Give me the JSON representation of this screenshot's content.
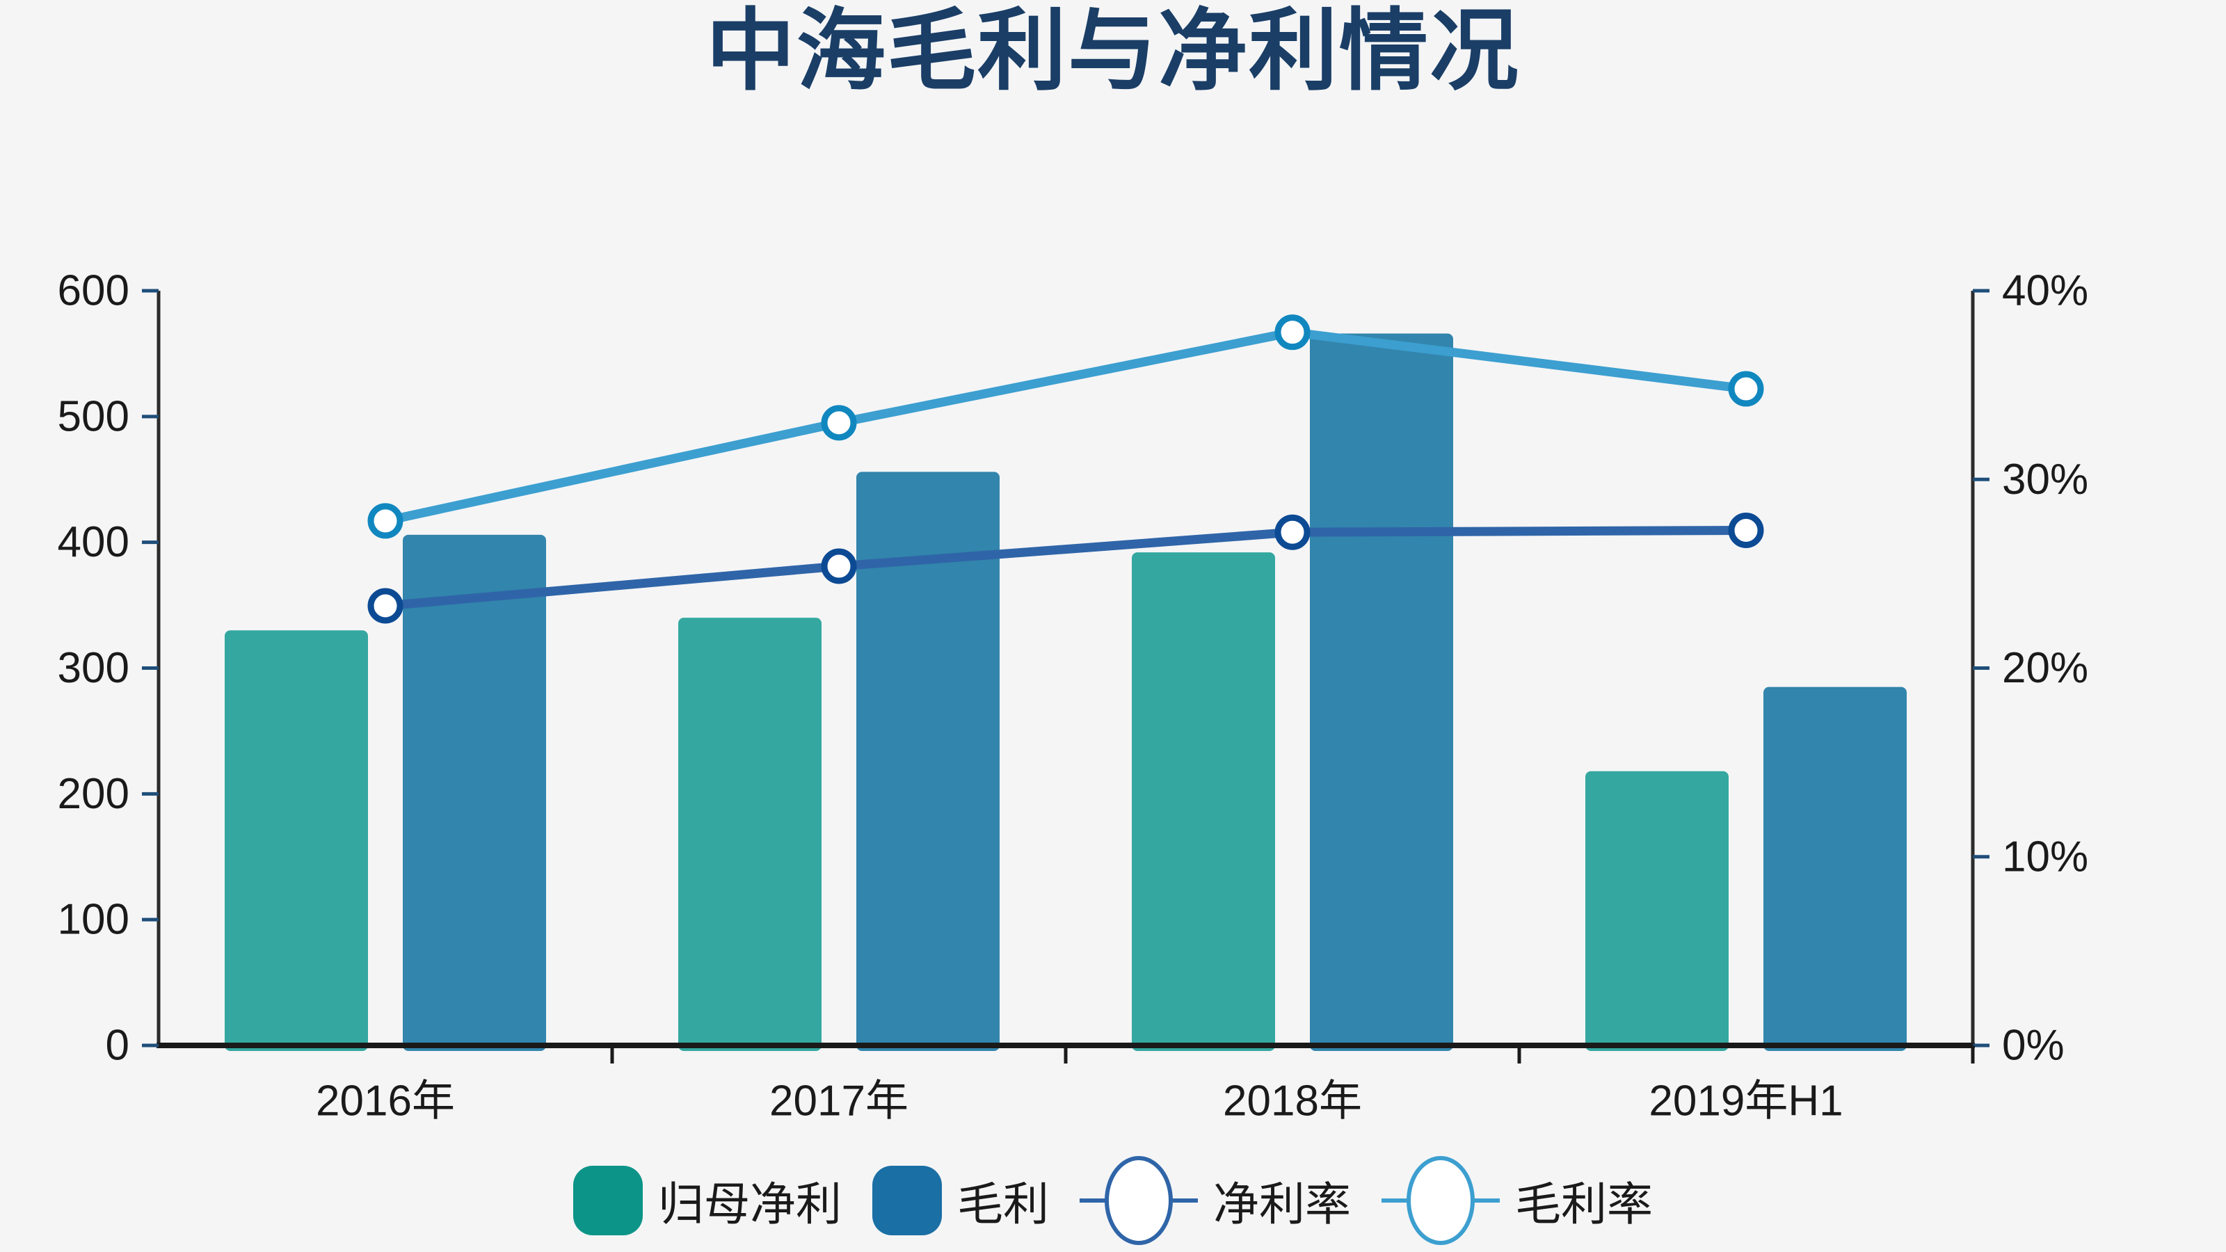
{
  "title": "中海毛利与净利情况",
  "page": {
    "background": "#F5F5F6",
    "title_color": "#1A3E66",
    "axis_text_color": "#1A1A1A",
    "axis_line_color": "#2B2B2B",
    "x_axis_line_color": "#1A1A1A",
    "tick_color": "#1F4E79"
  },
  "chart_data": {
    "type": "combo-bar-line-dual-axis",
    "categories": [
      "2016年",
      "2017年",
      "2018年",
      "2019年H1"
    ],
    "bar_series": [
      {
        "key": "net-profit",
        "name": "归母净利",
        "legend_color": "#0D9488",
        "bar_color": "#34A8A0",
        "values": [
          330,
          340,
          392,
          218
        ]
      },
      {
        "key": "gross-profit",
        "name": "毛利",
        "legend_color": "#1A6FA4",
        "bar_color": "#3285AC",
        "values": [
          406,
          456,
          566,
          285
        ]
      }
    ],
    "line_series": [
      {
        "key": "net-margin",
        "name": "净利率",
        "line_color": "#2F65A8",
        "marker_stroke": "#0C4A94",
        "values": [
          23.3,
          25.4,
          27.2,
          27.3
        ]
      },
      {
        "key": "gross-margin",
        "name": "毛利率",
        "line_color": "#3C9FD0",
        "marker_stroke": "#1187BF",
        "values": [
          27.8,
          33.0,
          37.8,
          34.8
        ]
      }
    ],
    "left_axis": {
      "min": 0,
      "max": 600,
      "step": 100,
      "tick_labels": [
        "0",
        "100",
        "200",
        "300",
        "400",
        "500",
        "600"
      ]
    },
    "right_axis": {
      "min": 0,
      "max": 40,
      "step": 10,
      "tick_labels": [
        "0%",
        "10%",
        "20%",
        "30%",
        "40%"
      ]
    },
    "grid": false,
    "legend_position": "bottom-center"
  }
}
